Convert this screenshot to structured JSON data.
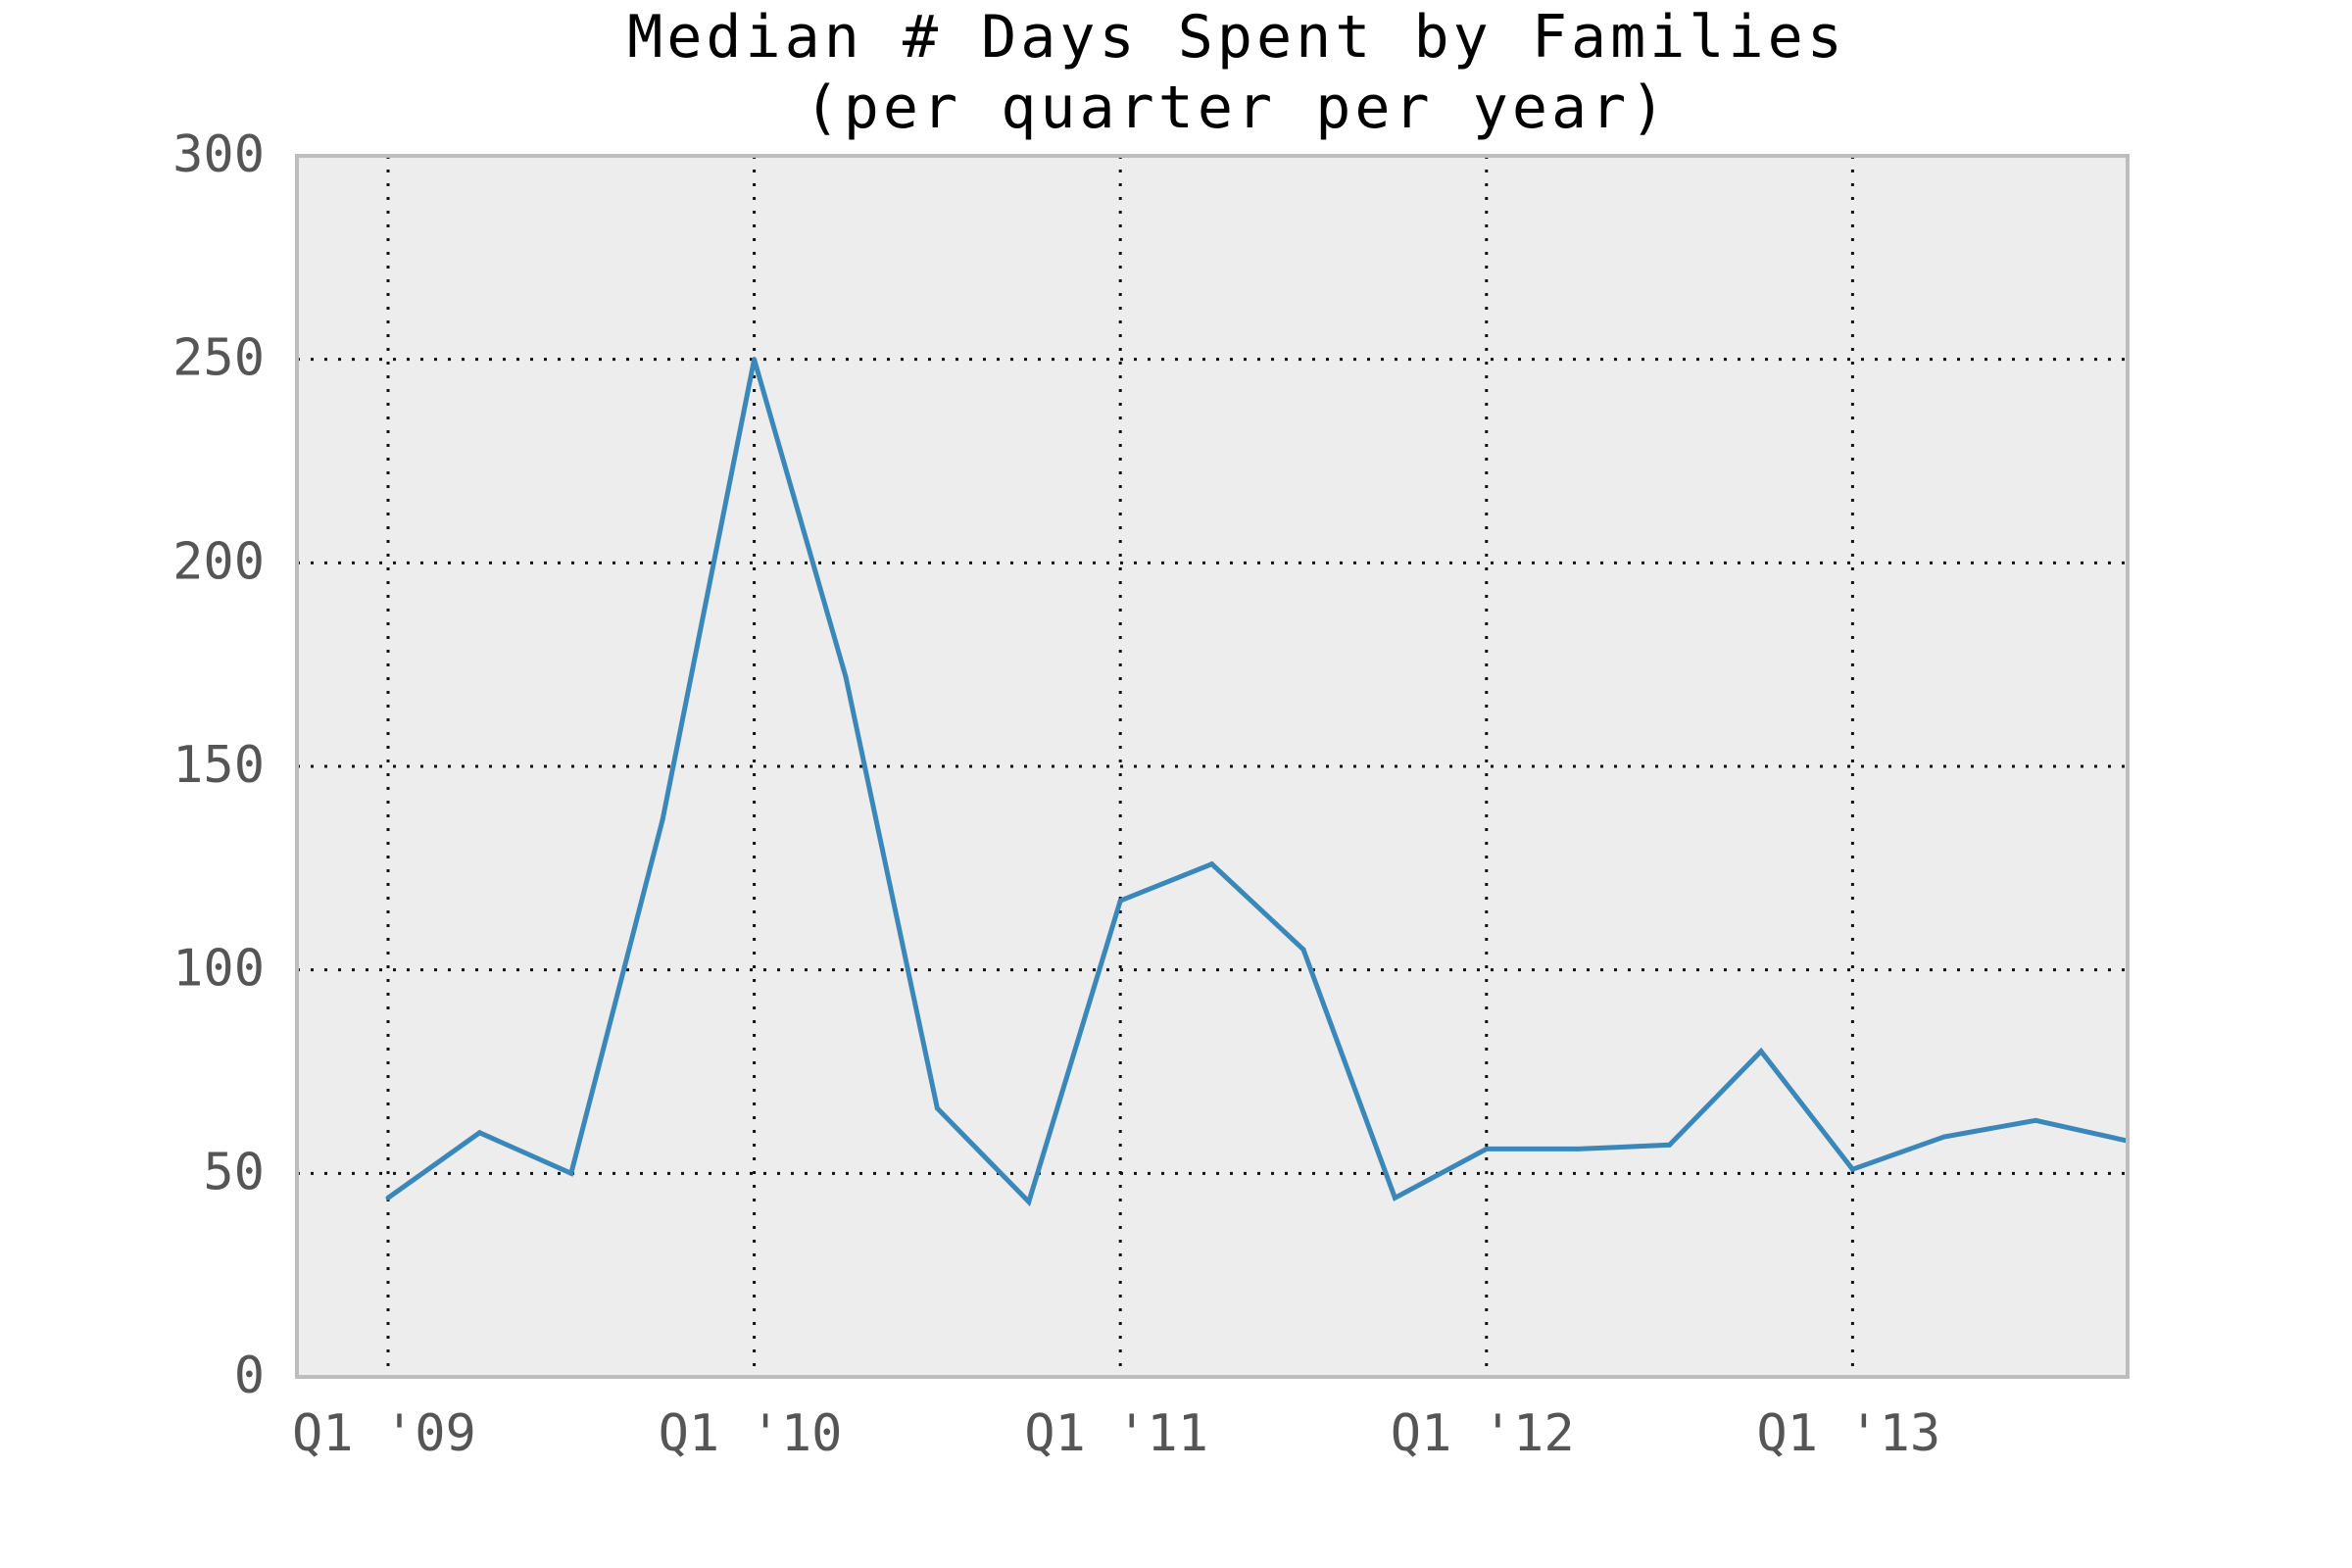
{
  "chart_data": {
    "type": "line",
    "title": "Median # Days Spent by Families",
    "subtitle": "(per quarter per year)",
    "xlabel": "",
    "ylabel": "",
    "x_tick_labels": [
      "Q1 '09",
      "Q1 '10",
      "Q1 '11",
      "Q1 '12",
      "Q1 '13"
    ],
    "y_tick_labels": [
      "0",
      "50",
      "100",
      "150",
      "200",
      "250",
      "300"
    ],
    "y_ticks": [
      0,
      50,
      100,
      150,
      200,
      250,
      300
    ],
    "ylim": [
      0,
      300
    ],
    "grid": true,
    "colors": {
      "line": "#3a87b9",
      "plot_background": "#ededed",
      "frame": "#bdbdbd",
      "grid": "#111111"
    },
    "series": [
      {
        "x": [
          "Q1 '09",
          "Q2 '09",
          "Q3 '09",
          "Q4 '09",
          "Q1 '10",
          "Q2 '10",
          "Q3 '10",
          "Q4 '10",
          "Q1 '11",
          "Q2 '11",
          "Q3 '11",
          "Q4 '11",
          "Q1 '12",
          "Q2 '12",
          "Q3 '12",
          "Q4 '12",
          "Q1 '13",
          "Q2 '13",
          "Q3 '13",
          "Q4 '13"
        ],
        "values": [
          44,
          60,
          50,
          137,
          250,
          172,
          66,
          43,
          117,
          126,
          105,
          44,
          56,
          56,
          57,
          80,
          51,
          59,
          63,
          58
        ]
      }
    ]
  }
}
